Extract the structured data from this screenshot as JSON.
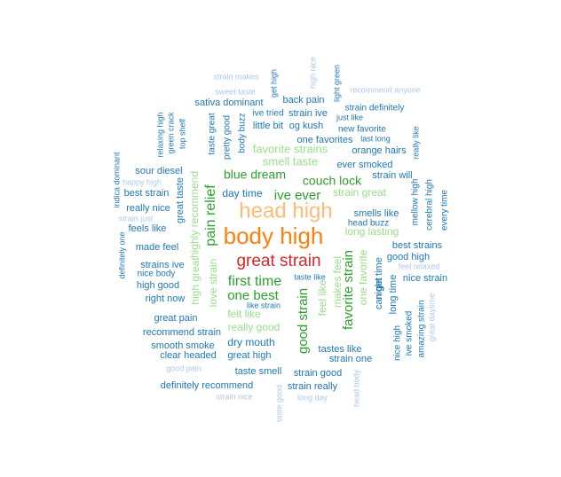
{
  "palette": {
    "c1": "#aec7e8",
    "c2": "#1f77b4",
    "c3": "#98df8a",
    "c4": "#2ca02c",
    "c5": "#ffbb78",
    "c6": "#ff7f0e",
    "c7": "#d62728"
  },
  "words": [
    {
      "text": "body high",
      "color": "c6"
    },
    {
      "text": "head high",
      "color": "c5"
    },
    {
      "text": "great strain",
      "color": "c7"
    },
    {
      "text": "pain relief",
      "color": "c4"
    },
    {
      "text": "good strain",
      "color": "c4"
    },
    {
      "text": "favorite strain",
      "color": "c4"
    },
    {
      "text": "first time",
      "color": "c4"
    },
    {
      "text": "one best",
      "color": "c4"
    },
    {
      "text": "ive ever",
      "color": "c4"
    },
    {
      "text": "blue dream",
      "color": "c4"
    },
    {
      "text": "couch lock",
      "color": "c4"
    },
    {
      "text": "dry mouth",
      "color": "c2"
    },
    {
      "text": "smell taste",
      "color": "c3"
    },
    {
      "text": "favorite strains",
      "color": "c3"
    },
    {
      "text": "strain great",
      "color": "c3"
    },
    {
      "text": "long lasting",
      "color": "c3"
    },
    {
      "text": "love strain",
      "color": "c3"
    },
    {
      "text": "felt like",
      "color": "c3"
    },
    {
      "text": "really good",
      "color": "c3"
    },
    {
      "text": "one favorite",
      "color": "c3"
    },
    {
      "text": "feel like",
      "color": "c3"
    },
    {
      "text": "makes feel",
      "color": "c3"
    },
    {
      "text": "high great",
      "color": "c3"
    },
    {
      "text": "highly recommend",
      "color": "c3"
    },
    {
      "text": "smells like",
      "color": "c2"
    },
    {
      "text": "day time",
      "color": "c2"
    },
    {
      "text": "great taste",
      "color": "c2"
    },
    {
      "text": "sour diesel",
      "color": "c2"
    },
    {
      "text": "best strain",
      "color": "c2"
    },
    {
      "text": "really nice",
      "color": "c2"
    },
    {
      "text": "feels like",
      "color": "c2"
    },
    {
      "text": "made feel",
      "color": "c2"
    },
    {
      "text": "strains ive",
      "color": "c2"
    },
    {
      "text": "high good",
      "color": "c2"
    },
    {
      "text": "right now",
      "color": "c2"
    },
    {
      "text": "great pain",
      "color": "c2"
    },
    {
      "text": "recommend strain",
      "color": "c2"
    },
    {
      "text": "smooth smoke",
      "color": "c2"
    },
    {
      "text": "clear headed",
      "color": "c2"
    },
    {
      "text": "great high",
      "color": "c2"
    },
    {
      "text": "taste smell",
      "color": "c2"
    },
    {
      "text": "strain good",
      "color": "c2"
    },
    {
      "text": "definitely recommend",
      "color": "c2"
    },
    {
      "text": "strain really",
      "color": "c2"
    },
    {
      "text": "tastes like",
      "color": "c2"
    },
    {
      "text": "strain one",
      "color": "c2"
    },
    {
      "text": "best strains",
      "color": "c2"
    },
    {
      "text": "good high",
      "color": "c2"
    },
    {
      "text": "nice strain",
      "color": "c2"
    },
    {
      "text": "orange hairs",
      "color": "c2"
    },
    {
      "text": "ever smoked",
      "color": "c2"
    },
    {
      "text": "strain will",
      "color": "c2"
    },
    {
      "text": "new favorite",
      "color": "c2"
    },
    {
      "text": "one favorites",
      "color": "c2"
    },
    {
      "text": "og kush",
      "color": "c2"
    },
    {
      "text": "little bit",
      "color": "c2"
    },
    {
      "text": "ive tried",
      "color": "c2"
    },
    {
      "text": "strain ive",
      "color": "c2"
    },
    {
      "text": "back pain",
      "color": "c2"
    },
    {
      "text": "sativa dominant",
      "color": "c2"
    },
    {
      "text": "strain definitely",
      "color": "c2"
    },
    {
      "text": "just like",
      "color": "c2"
    },
    {
      "text": "last long",
      "color": "c2"
    },
    {
      "text": "head buzz",
      "color": "c2"
    },
    {
      "text": "taste like",
      "color": "c2"
    },
    {
      "text": "like strain",
      "color": "c2"
    },
    {
      "text": "nice body",
      "color": "c2"
    },
    {
      "text": "can get",
      "color": "c2"
    },
    {
      "text": "night time",
      "color": "c2"
    },
    {
      "text": "long time",
      "color": "c2"
    },
    {
      "text": "nice high",
      "color": "c2"
    },
    {
      "text": "ive smoked",
      "color": "c2"
    },
    {
      "text": "amazing strain",
      "color": "c2"
    },
    {
      "text": "mellow high",
      "color": "c2"
    },
    {
      "text": "cerebral high",
      "color": "c2"
    },
    {
      "text": "every time",
      "color": "c2"
    },
    {
      "text": "really like",
      "color": "c2"
    },
    {
      "text": "indica dominant",
      "color": "c2"
    },
    {
      "text": "definitely one",
      "color": "c2"
    },
    {
      "text": "relaxing high",
      "color": "c2"
    },
    {
      "text": "green crack",
      "color": "c2"
    },
    {
      "text": "top shelf",
      "color": "c2"
    },
    {
      "text": "taste great",
      "color": "c2"
    },
    {
      "text": "pretty good",
      "color": "c2"
    },
    {
      "text": "body buzz",
      "color": "c2"
    },
    {
      "text": "get high",
      "color": "c2"
    },
    {
      "text": "light green",
      "color": "c2"
    },
    {
      "text": "strain makes",
      "color": "c1"
    },
    {
      "text": "sweet taste",
      "color": "c1"
    },
    {
      "text": "high nice",
      "color": "c1"
    },
    {
      "text": "recommend anyone",
      "color": "c1"
    },
    {
      "text": "happy high",
      "color": "c1"
    },
    {
      "text": "strain just",
      "color": "c1"
    },
    {
      "text": "feel relaxed",
      "color": "c1"
    },
    {
      "text": "great daytime",
      "color": "c1"
    },
    {
      "text": "good pain",
      "color": "c1"
    },
    {
      "text": "strain nice",
      "color": "c1"
    },
    {
      "text": "taste good",
      "color": "c1"
    },
    {
      "text": "long day",
      "color": "c1"
    },
    {
      "text": "head body",
      "color": "c1"
    }
  ]
}
